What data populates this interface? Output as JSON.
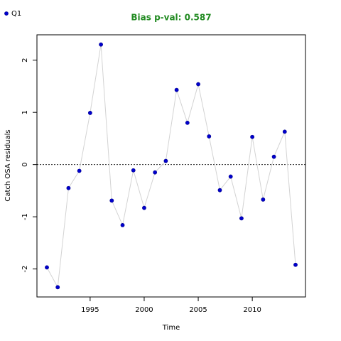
{
  "chart_data": {
    "type": "line",
    "title": "Bias p-val: 0.587",
    "title_color": "#228b22",
    "x_label": "Time",
    "y_label": "Catch OSA residuals",
    "x": [
      1991,
      1992,
      1993,
      1994,
      1995,
      1996,
      1997,
      1998,
      1999,
      2000,
      2001,
      2002,
      2003,
      2004,
      2005,
      2006,
      2007,
      2008,
      2009,
      2010,
      2011,
      2012,
      2013,
      2014
    ],
    "series": [
      {
        "name": "Q1",
        "color": "#0000cd",
        "line_color": "#d3d3d3",
        "values": [
          -1.97,
          -2.35,
          -0.45,
          -0.12,
          0.99,
          2.3,
          -0.69,
          -1.16,
          -0.11,
          -0.83,
          -0.15,
          0.07,
          1.43,
          0.8,
          1.54,
          0.54,
          -0.49,
          -0.23,
          -1.03,
          0.53,
          -0.67,
          0.15,
          0.63,
          -1.92
        ]
      }
    ],
    "xlim": [
      1990.08,
      2014.92
    ],
    "xticks": [
      1995,
      2000,
      2005,
      2010
    ],
    "ylim": [
      -2.536,
      2.486
    ],
    "yticks": [
      -2,
      -1,
      0,
      1,
      2
    ],
    "hline": 0,
    "legend": "top-left"
  }
}
